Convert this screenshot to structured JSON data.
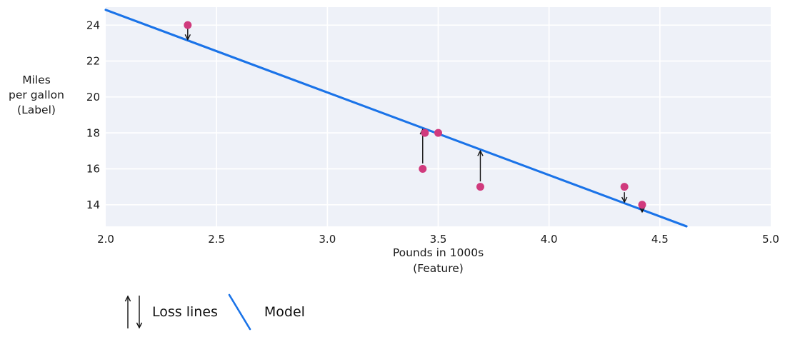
{
  "chart_data": {
    "type": "scatter",
    "title": "",
    "xlabel_lines": [
      "Pounds in 1000s",
      "(Feature)"
    ],
    "ylabel_lines": [
      "Miles",
      "per gallon",
      "(Label)"
    ],
    "xlim": [
      2.0,
      5.0
    ],
    "ylim": [
      12.8,
      25.0
    ],
    "x_ticks": [
      "2.0",
      "2.5",
      "3.0",
      "3.5",
      "4.0",
      "4.5",
      "5.0"
    ],
    "y_ticks": [
      "14",
      "16",
      "18",
      "20",
      "22",
      "24"
    ],
    "grid": true,
    "points": [
      {
        "x": 2.37,
        "y": 24
      },
      {
        "x": 3.43,
        "y": 16
      },
      {
        "x": 3.44,
        "y": 18
      },
      {
        "x": 3.5,
        "y": 18
      },
      {
        "x": 3.69,
        "y": 15
      },
      {
        "x": 4.34,
        "y": 15
      },
      {
        "x": 4.42,
        "y": 14
      }
    ],
    "model_line": {
      "x1": 2.0,
      "y1": 24.85,
      "x2": 4.62,
      "y2": 12.8
    },
    "loss_arrows": [
      {
        "x": 2.37,
        "from_y": 23.8,
        "to_y": 23.2,
        "direction": "down"
      },
      {
        "x": 3.43,
        "from_y": 16.3,
        "to_y": 18.2,
        "direction": "up"
      },
      {
        "x": 3.69,
        "from_y": 15.3,
        "to_y": 17.0,
        "direction": "up"
      },
      {
        "x": 4.34,
        "from_y": 14.7,
        "to_y": 14.15,
        "direction": "down"
      },
      {
        "x": 4.42,
        "from_y": 13.8,
        "to_y": 13.6,
        "direction": "down"
      }
    ],
    "colors": {
      "point": "#d03a7d",
      "model_line": "#1a73e8",
      "loss_arrow": "#111111",
      "plot_background": "#eef1f8",
      "gridline": "#ffffff",
      "text": "#1a1a1a"
    },
    "legend": {
      "position": "bottom-left",
      "loss_label": "Loss lines",
      "model_label": "Model"
    }
  }
}
